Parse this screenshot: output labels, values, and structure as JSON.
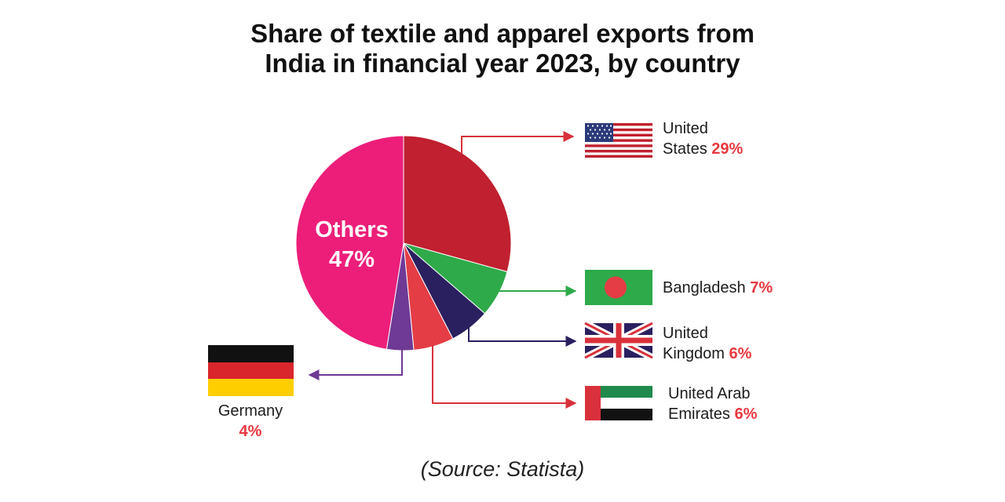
{
  "title": {
    "line1": "Share of textile and apparel exports from",
    "line2": "India in financial year 2023, by country"
  },
  "source": "(Source: Statista)",
  "colors": {
    "united_states": "#C0202F",
    "bangladesh": "#2EAA4A",
    "united_kingdom": "#2A2060",
    "uae": "#E43D45",
    "germany": "#6F3A96",
    "others": "#EC1E7A",
    "percent_text": "#E8383F"
  },
  "chart_data": {
    "type": "pie",
    "title": "Share of textile and apparel exports from India in financial year 2023, by country",
    "slices": [
      {
        "key": "united_states",
        "label_lines": [
          "United",
          "States"
        ],
        "value": 29,
        "value_label": "29%",
        "flag": "united-states-flag"
      },
      {
        "key": "bangladesh",
        "label_lines": [
          "Bangladesh"
        ],
        "value": 7,
        "value_label": "7%",
        "flag": "bangladesh-flag"
      },
      {
        "key": "united_kingdom",
        "label_lines": [
          "United",
          "Kingdom"
        ],
        "value": 6,
        "value_label": "6%",
        "flag": "united-kingdom-flag"
      },
      {
        "key": "uae",
        "label_lines": [
          "United Arab",
          "Emirates"
        ],
        "value": 6,
        "value_label": "6%",
        "flag": "uae-flag"
      },
      {
        "key": "germany",
        "label_lines": [
          "Germany"
        ],
        "value": 4,
        "value_label": "4%",
        "flag": "germany-flag"
      },
      {
        "key": "others",
        "label_lines": [
          "Others"
        ],
        "value": 47,
        "value_label": "47%",
        "flag": ""
      }
    ]
  }
}
